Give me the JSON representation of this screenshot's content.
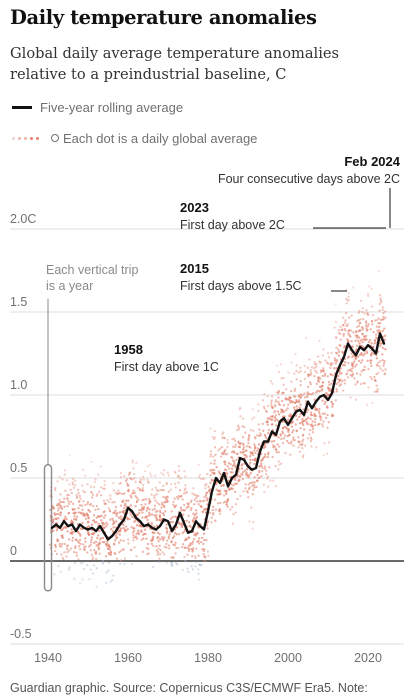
{
  "title": "Daily temperature anomalies",
  "subtitle": "Global daily average temperature anomalies relative to a preindustrial baseline, C",
  "legend": {
    "line_label": "Five-year rolling average",
    "dots_label": "Each dot is a daily global average"
  },
  "footer": "Guardian graphic. Source: Copernicus C3S/ECMWF Era5. Note:",
  "colors": {
    "dots": "#e2826f",
    "cool_dots": "#9fb1c9",
    "line": "#121212",
    "grid": "#dcdcdc",
    "axis_text": "#707070"
  },
  "chart_data": {
    "type": "scatter",
    "xlim": [
      1940,
      2024
    ],
    "ylim": [
      -0.5,
      2.0
    ],
    "x_ticks": [
      "1940",
      "1960",
      "1980",
      "2000",
      "2020"
    ],
    "y_ticks": [
      {
        "value": 2.0,
        "label": "2.0C"
      },
      {
        "value": 1.5,
        "label": "1.5"
      },
      {
        "value": 1.0,
        "label": "1.0"
      },
      {
        "value": 0.5,
        "label": "0.5"
      },
      {
        "value": 0,
        "label": "0"
      },
      {
        "value": -0.5,
        "label": "-0.5"
      }
    ],
    "grid": true,
    "series": [
      {
        "name": "Five-year rolling average",
        "kind": "line",
        "x": [
          1941,
          1942,
          1943,
          1944,
          1945,
          1946,
          1947,
          1948,
          1949,
          1950,
          1951,
          1952,
          1953,
          1954,
          1955,
          1956,
          1957,
          1958,
          1959,
          1960,
          1961,
          1962,
          1963,
          1964,
          1965,
          1966,
          1967,
          1968,
          1969,
          1970,
          1971,
          1972,
          1973,
          1974,
          1975,
          1976,
          1977,
          1978,
          1979,
          1980,
          1981,
          1982,
          1983,
          1984,
          1985,
          1986,
          1987,
          1988,
          1989,
          1990,
          1991,
          1992,
          1993,
          1994,
          1995,
          1996,
          1997,
          1998,
          1999,
          2000,
          2001,
          2002,
          2003,
          2004,
          2005,
          2006,
          2007,
          2008,
          2009,
          2010,
          2011,
          2012,
          2013,
          2014,
          2015,
          2016,
          2017,
          2018,
          2019,
          2020,
          2021,
          2022,
          2023,
          2024
        ],
        "y": [
          0.2,
          0.22,
          0.2,
          0.24,
          0.21,
          0.22,
          0.18,
          0.22,
          0.2,
          0.19,
          0.2,
          0.18,
          0.21,
          0.17,
          0.13,
          0.15,
          0.18,
          0.22,
          0.25,
          0.32,
          0.3,
          0.26,
          0.24,
          0.21,
          0.22,
          0.2,
          0.19,
          0.21,
          0.25,
          0.24,
          0.18,
          0.22,
          0.29,
          0.23,
          0.17,
          0.18,
          0.24,
          0.21,
          0.19,
          0.3,
          0.42,
          0.5,
          0.47,
          0.53,
          0.45,
          0.5,
          0.52,
          0.62,
          0.61,
          0.57,
          0.55,
          0.56,
          0.66,
          0.72,
          0.72,
          0.78,
          0.76,
          0.84,
          0.86,
          0.82,
          0.86,
          0.9,
          0.91,
          0.88,
          0.96,
          0.92,
          0.96,
          0.99,
          1.0,
          0.97,
          1.01,
          1.12,
          1.18,
          1.23,
          1.31,
          1.27,
          1.24,
          1.29,
          1.27,
          1.3,
          1.28,
          1.25,
          1.37,
          1.31
        ]
      },
      {
        "name": "Each dot is a daily global average",
        "kind": "daily-dot-cloud",
        "annual_mean": "Five-year rolling average",
        "spread": [
          -0.4,
          0.45
        ]
      }
    ],
    "annotations": [
      {
        "year_label": "1958",
        "text": "First day above 1C",
        "x": 1958,
        "y": 1.04
      },
      {
        "year_label": "2015",
        "text": "First days above 1.5C",
        "x": 2015,
        "y": 1.6
      },
      {
        "year_label": "2023",
        "text": "First day above 2C",
        "x": 2023,
        "y": 2.01
      },
      {
        "year_label": "Feb 2024",
        "text": "Four consecutive days above 2C",
        "x": 2024,
        "y": 2.1
      },
      {
        "year_label": "",
        "text": "Each vertical trip is a year",
        "x": 1940,
        "y": 0.25
      }
    ]
  }
}
